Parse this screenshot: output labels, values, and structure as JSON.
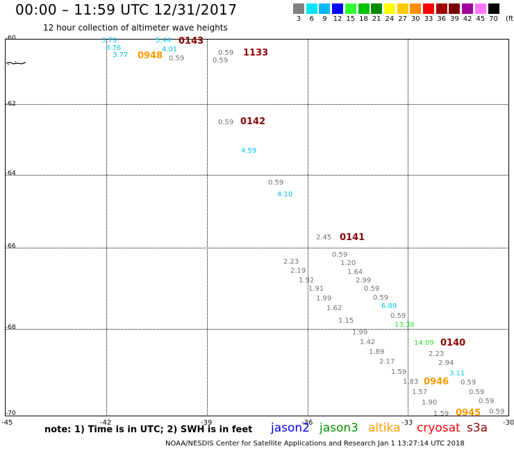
{
  "title": "00:00 – 11:59 UTC 12/31/2017",
  "subtitle": "12 hour collection of altimeter wave heights",
  "legend": {
    "labels": [
      "3",
      "6",
      "9",
      "12",
      "15",
      "18",
      "21",
      "24",
      "27",
      "30",
      "33",
      "36",
      "39",
      "42",
      "45",
      "70"
    ],
    "colors": [
      "#808080",
      "#00e5ff",
      "#00b8f5",
      "#0000ff",
      "#32ff32",
      "#00c000",
      "#008c00",
      "#ffff00",
      "#ffc800",
      "#ff8c00",
      "#ff0000",
      "#a00000",
      "#780000",
      "#a000a0",
      "#ff78ff",
      "#000000"
    ],
    "unit": "(ft)"
  },
  "axes": {
    "lat_labels": [
      "-60",
      "-62",
      "-64",
      "-66",
      "-68",
      "-70"
    ],
    "lon_labels": [
      "-45",
      "-42",
      "-39",
      "-36",
      "-33",
      "-30"
    ]
  },
  "measurements": [
    {
      "text": "3.79",
      "color": "#00c8e6"
    },
    {
      "text": "3.76",
      "color": "#00c8e6"
    },
    {
      "text": "3.77",
      "color": "#00c8e6"
    },
    {
      "text": "5.44",
      "color": "#00c8e6"
    },
    {
      "text": "4.01",
      "color": "#00c8e6"
    },
    {
      "text": "0.59",
      "color": "#707070"
    },
    {
      "text": "0.59",
      "color": "#707070"
    },
    {
      "text": "0.59",
      "color": "#707070"
    },
    {
      "text": "0.59",
      "color": "#707070"
    },
    {
      "text": "4.59",
      "color": "#00c8e6"
    },
    {
      "text": "0.59",
      "color": "#707070"
    },
    {
      "text": "4.10",
      "color": "#00c8e6"
    },
    {
      "text": "2.45",
      "color": "#707070"
    },
    {
      "text": "0.59",
      "color": "#707070"
    },
    {
      "text": "2.23",
      "color": "#707070"
    },
    {
      "text": "1.20",
      "color": "#707070"
    },
    {
      "text": "2.19",
      "color": "#707070"
    },
    {
      "text": "1.64",
      "color": "#707070"
    },
    {
      "text": "1.92",
      "color": "#707070"
    },
    {
      "text": "2.99",
      "color": "#707070"
    },
    {
      "text": "1.91",
      "color": "#707070"
    },
    {
      "text": "0.59",
      "color": "#707070"
    },
    {
      "text": "1.99",
      "color": "#707070"
    },
    {
      "text": "0.59",
      "color": "#707070"
    },
    {
      "text": "1.62",
      "color": "#707070"
    },
    {
      "text": "6.89",
      "color": "#00c8e6"
    },
    {
      "text": "1.15",
      "color": "#707070"
    },
    {
      "text": "0.59",
      "color": "#707070"
    },
    {
      "text": "13.38",
      "color": "#32e632"
    },
    {
      "text": "1.99",
      "color": "#707070"
    },
    {
      "text": "14.09",
      "color": "#32e632"
    },
    {
      "text": "1.42",
      "color": "#707070"
    },
    {
      "text": "1.89",
      "color": "#707070"
    },
    {
      "text": "2.23",
      "color": "#707070"
    },
    {
      "text": "2.17",
      "color": "#707070"
    },
    {
      "text": "2.94",
      "color": "#707070"
    },
    {
      "text": "1.59",
      "color": "#707070"
    },
    {
      "text": "3.11",
      "color": "#00c8e6"
    },
    {
      "text": "1.83",
      "color": "#707070"
    },
    {
      "text": "0.59",
      "color": "#707070"
    },
    {
      "text": "1.57",
      "color": "#707070"
    },
    {
      "text": "0.59",
      "color": "#707070"
    },
    {
      "text": "1.90",
      "color": "#707070"
    },
    {
      "text": "0.59",
      "color": "#707070"
    },
    {
      "text": "1.59",
      "color": "#707070"
    },
    {
      "text": "0.59",
      "color": "#707070"
    }
  ],
  "times": [
    {
      "text": "0143",
      "color": "#8b0000"
    },
    {
      "text": "0948",
      "color": "#ff9900"
    },
    {
      "text": "1133",
      "color": "#8b0000"
    },
    {
      "text": "0142",
      "color": "#8b0000"
    },
    {
      "text": "0141",
      "color": "#8b0000"
    },
    {
      "text": "0140",
      "color": "#8b0000"
    },
    {
      "text": "0946",
      "color": "#ff9900"
    },
    {
      "text": "0945",
      "color": "#ff9900"
    }
  ],
  "note": "note: 1) Time is in UTC; 2) SWH is in feet",
  "satellites": [
    {
      "name": "jason2",
      "color": "#0000ff"
    },
    {
      "name": "jason3",
      "color": "#009600"
    },
    {
      "name": "altika",
      "color": "#ff9900"
    },
    {
      "name": "cryosat",
      "color": "#ff0000"
    },
    {
      "name": "s3a",
      "color": "#8b0000"
    }
  ],
  "footer": "NOAA/NESDIS Center for Satellite Applications and Research    Jan  1 13:27:14 UTC 2018"
}
